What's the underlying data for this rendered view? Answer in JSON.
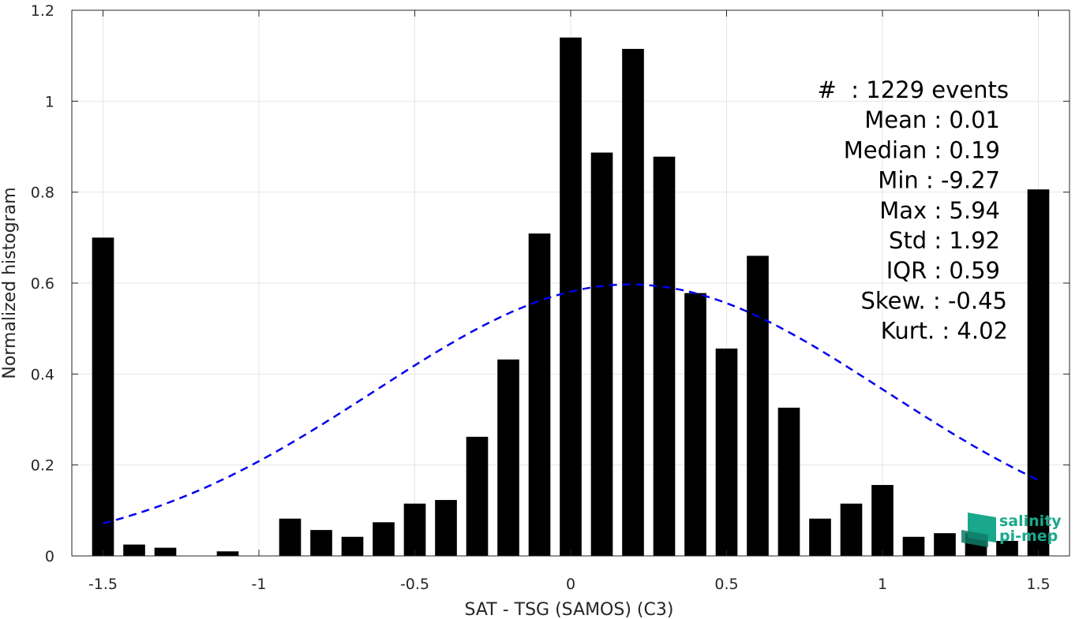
{
  "chart_data": {
    "type": "bar",
    "xlabel": "SAT - TSG (SAMOS) (C3)",
    "ylabel": "Normalized histogram",
    "xlim": [
      -1.6,
      1.6
    ],
    "ylim": [
      0,
      1.2
    ],
    "xticks": [
      -1.5,
      -1,
      -0.5,
      0,
      0.5,
      1,
      1.5
    ],
    "xtick_labels": [
      "-1.5",
      "-1",
      "-0.5",
      "0",
      "0.5",
      "1",
      "1.5"
    ],
    "yticks": [
      0,
      0.2,
      0.4,
      0.6,
      0.8,
      1,
      1.2
    ],
    "ytick_labels": [
      "0",
      "0.2",
      "0.4",
      "0.6",
      "0.8",
      "1",
      "1.2"
    ],
    "grid": true,
    "bar_width": 0.07,
    "bars": {
      "x": [
        -1.5,
        -1.4,
        -1.3,
        -1.2,
        -1.1,
        -1.0,
        -0.9,
        -0.8,
        -0.7,
        -0.6,
        -0.5,
        -0.4,
        -0.3,
        -0.2,
        -0.1,
        0.0,
        0.1,
        0.2,
        0.3,
        0.4,
        0.5,
        0.6,
        0.7,
        0.8,
        0.9,
        1.0,
        1.1,
        1.2,
        1.3,
        1.4,
        1.5
      ],
      "values": [
        0.7,
        0.025,
        0.018,
        0,
        0.01,
        0,
        0.082,
        0.057,
        0.042,
        0.074,
        0.115,
        0.123,
        0.262,
        0.432,
        0.709,
        1.14,
        0.887,
        1.115,
        0.878,
        0.578,
        0.456,
        0.66,
        0.326,
        0.082,
        0.115,
        0.156,
        0.042,
        0.05,
        0.05,
        0.033,
        0.806
      ],
      "color": "#000000"
    },
    "fit_curve": {
      "style": "dashed",
      "color": "#0000ee",
      "mean": 0.19,
      "std": 0.82,
      "peak": 0.597,
      "x_range": [
        -1.5,
        1.5
      ]
    },
    "stats": [
      {
        "label": "#  : 1229 events"
      },
      {
        "label": "Mean : 0.01"
      },
      {
        "label": "Median : 0.19"
      },
      {
        "label": "Min : -9.27"
      },
      {
        "label": "Max : 5.94"
      },
      {
        "label": "Std : 1.92"
      },
      {
        "label": "IQR : 0.59"
      },
      {
        "label": "Skew. : -0.45"
      },
      {
        "label": "Kurt. : 4.02"
      }
    ]
  },
  "logo": {
    "line1": "salinity",
    "line2": "pi-mep",
    "color": "#1aa88c"
  }
}
